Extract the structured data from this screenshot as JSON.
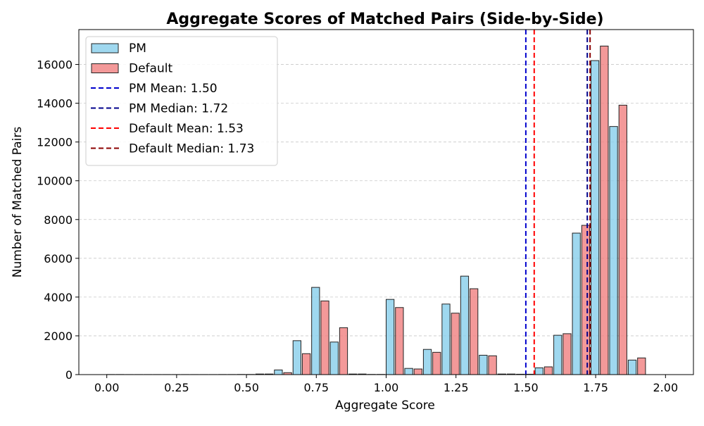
{
  "chart_data": {
    "type": "bar",
    "title": "Aggregate Scores of Matched Pairs (Side-by-Side)",
    "xlabel": "Aggregate Score",
    "ylabel": "Number of Matched Pairs",
    "xlim": [
      -0.1,
      2.1
    ],
    "ylim": [
      0,
      17800
    ],
    "xticks": [
      0.0,
      0.25,
      0.5,
      0.75,
      1.0,
      1.25,
      1.5,
      1.75,
      2.0
    ],
    "xtick_labels": [
      "0.00",
      "0.25",
      "0.50",
      "0.75",
      "1.00",
      "1.25",
      "1.50",
      "1.75",
      "2.00"
    ],
    "yticks": [
      0,
      2000,
      4000,
      6000,
      8000,
      10000,
      12000,
      14000,
      16000
    ],
    "ytick_labels": [
      "0",
      "2000",
      "4000",
      "6000",
      "8000",
      "10000",
      "12000",
      "14000",
      "16000"
    ],
    "grid": "y-dashed",
    "legend_position": "top-left",
    "bin_width": 0.0667,
    "x": [
      0.0,
      0.0667,
      0.1333,
      0.2,
      0.2667,
      0.3333,
      0.4,
      0.4667,
      0.5333,
      0.6,
      0.6667,
      0.7333,
      0.8,
      0.8667,
      0.9333,
      1.0,
      1.0667,
      1.1333,
      1.2,
      1.2667,
      1.3333,
      1.4,
      1.4667,
      1.5333,
      1.6,
      1.6667,
      1.7333,
      1.8,
      1.8667,
      1.9333
    ],
    "series": [
      {
        "name": "PM",
        "color": "#87CEEB",
        "values": [
          5,
          3,
          3,
          3,
          3,
          3,
          5,
          8,
          30,
          240,
          1750,
          4500,
          1680,
          30,
          10,
          3880,
          320,
          1300,
          3640,
          5080,
          1000,
          30,
          20,
          350,
          2030,
          7300,
          16200,
          12800,
          750,
          0
        ]
      },
      {
        "name": "Default",
        "color": "#F08080",
        "values": [
          5,
          3,
          3,
          3,
          3,
          3,
          5,
          8,
          30,
          100,
          1080,
          3800,
          2420,
          30,
          10,
          3460,
          290,
          1150,
          3170,
          4430,
          970,
          30,
          20,
          400,
          2110,
          7700,
          16950,
          13900,
          860,
          0
        ]
      }
    ],
    "reference_lines": [
      {
        "name": "PM Mean: 1.50",
        "value": 1.5,
        "color": "#0000CD"
      },
      {
        "name": "PM Median: 1.72",
        "value": 1.72,
        "color": "#00008B"
      },
      {
        "name": "Default Mean: 1.53",
        "value": 1.53,
        "color": "#FF0000"
      },
      {
        "name": "Default Median: 1.73",
        "value": 1.73,
        "color": "#8B0000"
      }
    ]
  }
}
